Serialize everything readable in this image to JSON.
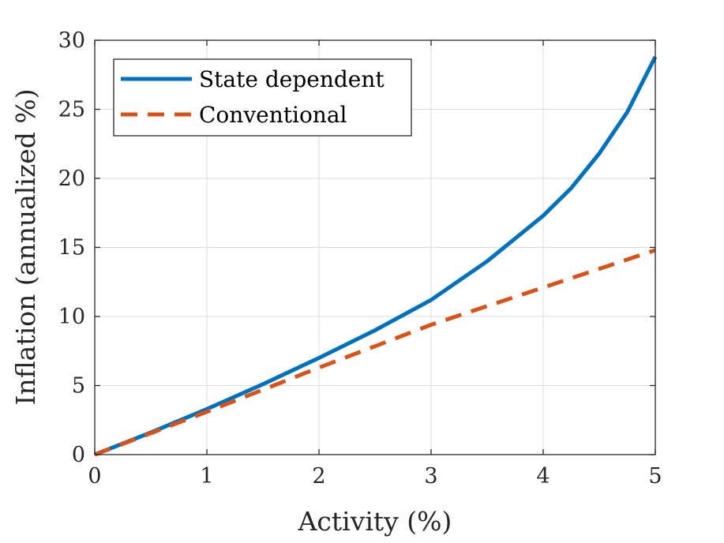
{
  "chart_data": {
    "type": "line",
    "xlabel": "Activity (%)",
    "ylabel": "Inflation (annualized %)",
    "xlim": [
      0,
      5
    ],
    "ylim": [
      0,
      30
    ],
    "xticks": [
      0,
      1,
      2,
      3,
      4,
      5
    ],
    "yticks": [
      0,
      5,
      10,
      15,
      20,
      25,
      30
    ],
    "grid": true,
    "legend_position": "top-left",
    "series": [
      {
        "name": "State dependent",
        "color": "#0072BD",
        "style": "solid",
        "x": [
          0,
          0.5,
          1,
          1.5,
          2,
          2.5,
          3,
          3.5,
          4,
          4.25,
          4.5,
          4.75,
          5
        ],
        "y": [
          0,
          1.6,
          3.3,
          5.1,
          7.0,
          9.0,
          11.2,
          14.0,
          17.3,
          19.3,
          21.8,
          24.8,
          28.8
        ]
      },
      {
        "name": "Conventional",
        "color": "#D95319",
        "style": "dashed",
        "x": [
          0,
          1,
          2,
          3,
          4,
          5
        ],
        "y": [
          0,
          3.1,
          6.3,
          9.4,
          12.1,
          14.8
        ]
      }
    ]
  }
}
